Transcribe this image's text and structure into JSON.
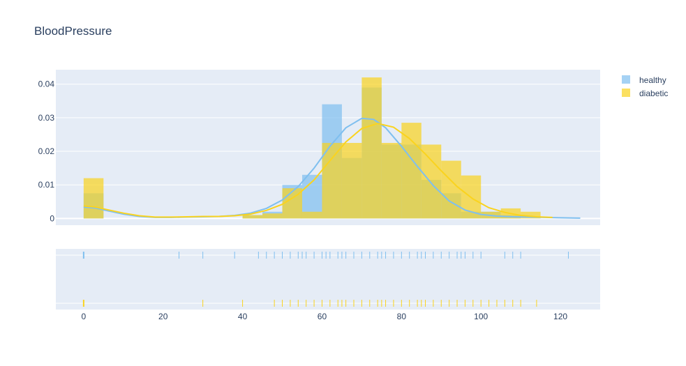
{
  "chart_data": {
    "type": "histogram_distplot",
    "title": "BloodPressure",
    "xlim": [
      -7,
      130
    ],
    "x_ticks": [
      0,
      20,
      40,
      60,
      80,
      100,
      120
    ],
    "y_ticks": [
      0,
      0.01,
      0.02,
      0.03,
      0.04
    ],
    "y_tick_labels": [
      "0",
      "0.01",
      "0.02",
      "0.03",
      "0.04"
    ],
    "ylim": [
      -0.002,
      0.0443
    ],
    "grid": true,
    "legend_position": "top-right",
    "bin_edges": [
      0,
      5,
      10,
      15,
      20,
      25,
      30,
      35,
      40,
      45,
      50,
      55,
      60,
      65,
      70,
      75,
      80,
      85,
      90,
      95,
      100,
      105,
      110,
      115
    ],
    "series": [
      {
        "name": "healthy",
        "color": "#7fbfef",
        "fill": "rgba(127,191,239,0.7)",
        "hist": [
          0.0075,
          0,
          0,
          0,
          0,
          0,
          0,
          0,
          0.001,
          0.002,
          0.01,
          0.013,
          0.034,
          0.018,
          0.039,
          0.022,
          0.022,
          0.0115,
          0.0075,
          0.002,
          0.002,
          0.001,
          0
        ],
        "kde": [
          [
            0,
            0.0034
          ],
          [
            3,
            0.0031
          ],
          [
            6,
            0.0023
          ],
          [
            10,
            0.0013
          ],
          [
            14,
            0.0006
          ],
          [
            18,
            0.0003
          ],
          [
            22,
            0.0003
          ],
          [
            26,
            0.0004
          ],
          [
            30,
            0.0005
          ],
          [
            34,
            0.0006
          ],
          [
            38,
            0.0009
          ],
          [
            42,
            0.0016
          ],
          [
            46,
            0.003
          ],
          [
            50,
            0.0055
          ],
          [
            54,
            0.0095
          ],
          [
            58,
            0.015
          ],
          [
            62,
            0.0215
          ],
          [
            66,
            0.027
          ],
          [
            70,
            0.0298
          ],
          [
            73,
            0.0295
          ],
          [
            76,
            0.027
          ],
          [
            80,
            0.0215
          ],
          [
            84,
            0.0155
          ],
          [
            88,
            0.0098
          ],
          [
            92,
            0.0052
          ],
          [
            96,
            0.0025
          ],
          [
            100,
            0.0012
          ],
          [
            104,
            0.0007
          ],
          [
            108,
            0.0005
          ],
          [
            112,
            0.0004
          ],
          [
            116,
            0.0003
          ],
          [
            120,
            0.0002
          ],
          [
            125,
            0.0001
          ]
        ],
        "rug": [
          0,
          24,
          30,
          38,
          44,
          46,
          48,
          50,
          52,
          54,
          55,
          56,
          58,
          60,
          61,
          62,
          64,
          65,
          66,
          68,
          70,
          72,
          74,
          75,
          76,
          78,
          80,
          82,
          84,
          85,
          86,
          88,
          90,
          92,
          94,
          95,
          96,
          98,
          100,
          106,
          108,
          110,
          122
        ]
      },
      {
        "name": "diabetic",
        "color": "#fad31e",
        "fill": "rgba(250,211,30,0.7)",
        "hist": [
          0.012,
          0,
          0,
          0,
          0,
          0,
          0,
          0,
          0.001,
          0.0015,
          0.009,
          0.002,
          0.0225,
          0.0225,
          0.042,
          0.0225,
          0.0285,
          0.022,
          0.0172,
          0.0128,
          0.002,
          0.003,
          0.002
        ],
        "kde": [
          [
            0,
            0.0037
          ],
          [
            3,
            0.0034
          ],
          [
            6,
            0.0026
          ],
          [
            10,
            0.0016
          ],
          [
            14,
            0.0008
          ],
          [
            18,
            0.0004
          ],
          [
            22,
            0.0004
          ],
          [
            26,
            0.0005
          ],
          [
            30,
            0.0006
          ],
          [
            34,
            0.0006
          ],
          [
            38,
            0.0008
          ],
          [
            42,
            0.0013
          ],
          [
            46,
            0.0024
          ],
          [
            50,
            0.0042
          ],
          [
            54,
            0.0072
          ],
          [
            58,
            0.0115
          ],
          [
            62,
            0.0172
          ],
          [
            66,
            0.0228
          ],
          [
            70,
            0.0268
          ],
          [
            74,
            0.0283
          ],
          [
            78,
            0.0272
          ],
          [
            82,
            0.0238
          ],
          [
            86,
            0.0192
          ],
          [
            90,
            0.0142
          ],
          [
            94,
            0.0095
          ],
          [
            98,
            0.0058
          ],
          [
            102,
            0.0032
          ],
          [
            106,
            0.0018
          ],
          [
            110,
            0.0009
          ],
          [
            114,
            0.0005
          ],
          [
            118,
            0.0003
          ]
        ],
        "rug": [
          0,
          30,
          40,
          48,
          50,
          52,
          54,
          56,
          58,
          60,
          62,
          64,
          65,
          66,
          68,
          70,
          72,
          74,
          75,
          76,
          78,
          80,
          82,
          84,
          85,
          86,
          88,
          90,
          92,
          94,
          96,
          98,
          100,
          102,
          104,
          106,
          108,
          110,
          114
        ]
      }
    ]
  }
}
